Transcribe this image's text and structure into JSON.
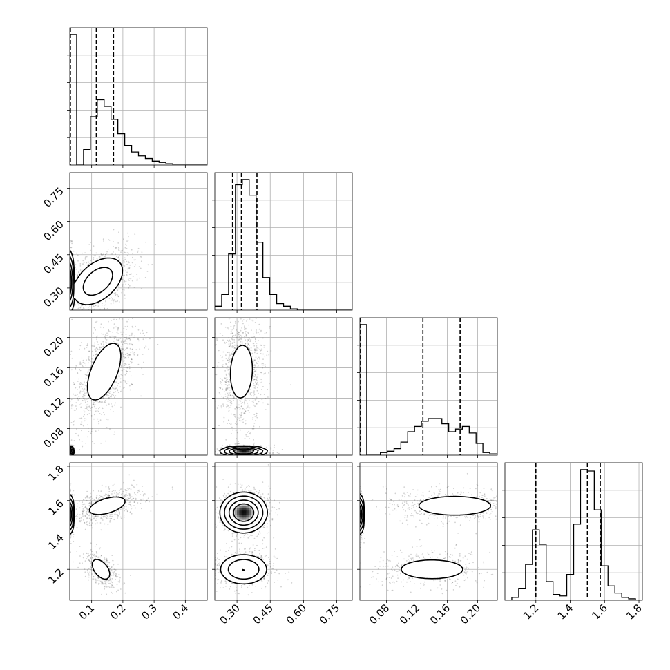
{
  "chart_data": {
    "type": "corner",
    "grid": true,
    "n_params": 4,
    "params": [
      {
        "ticks": [
          0.1,
          0.2,
          0.3,
          0.4
        ],
        "labels": [
          "0.1",
          "0.2",
          "0.3",
          "0.4"
        ],
        "range": [
          0.03,
          0.47
        ]
      },
      {
        "ticks": [
          0.3,
          0.45,
          0.6,
          0.75
        ],
        "labels": [
          "0.30",
          "0.45",
          "0.60",
          "0.75"
        ],
        "range": [
          0.2,
          0.82
        ]
      },
      {
        "ticks": [
          0.08,
          0.12,
          0.16,
          0.2
        ],
        "labels": [
          "0.08",
          "0.12",
          "0.16",
          "0.20"
        ],
        "range": [
          0.045,
          0.226
        ]
      },
      {
        "ticks": [
          1.2,
          1.4,
          1.6,
          1.8
        ],
        "labels": [
          "1.2",
          "1.4",
          "1.6",
          "1.8"
        ],
        "range": [
          1.02,
          1.82
        ]
      }
    ],
    "histograms": [
      {
        "bins": [
          0.03,
          0.052,
          0.074,
          0.096,
          0.118,
          0.14,
          0.162,
          0.184,
          0.206,
          0.228,
          0.25,
          0.272,
          0.294,
          0.316,
          0.338,
          0.36,
          0.382,
          0.404,
          0.426,
          0.448,
          0.47
        ],
        "values": [
          1.0,
          0.0,
          0.12,
          0.37,
          0.5,
          0.45,
          0.35,
          0.24,
          0.15,
          0.1,
          0.07,
          0.05,
          0.03,
          0.02,
          0.01,
          0.0,
          0.0,
          0.0,
          0.0,
          0.0
        ],
        "quantiles": [
          0.032,
          0.115,
          0.17
        ]
      },
      {
        "bins": [
          0.2,
          0.231,
          0.262,
          0.293,
          0.324,
          0.355,
          0.386,
          0.417,
          0.448,
          0.479,
          0.51,
          0.541,
          0.572,
          0.603,
          0.634,
          0.665,
          0.696,
          0.727,
          0.758,
          0.789,
          0.82
        ],
        "values": [
          0.03,
          0.12,
          0.43,
          0.96,
          1.0,
          0.88,
          0.52,
          0.25,
          0.12,
          0.05,
          0.03,
          0.01,
          0.0,
          0.0,
          0.0,
          0.0,
          0.0,
          0.0,
          0.0,
          0.0
        ],
        "quantiles": [
          0.28,
          0.32,
          0.39
        ]
      },
      {
        "bins": [
          0.045,
          0.054,
          0.063,
          0.072,
          0.081,
          0.09,
          0.099,
          0.108,
          0.117,
          0.126,
          0.135,
          0.144,
          0.153,
          0.162,
          0.171,
          0.18,
          0.189,
          0.198,
          0.207,
          0.216,
          0.226
        ],
        "values": [
          1.0,
          0.0,
          0.0,
          0.02,
          0.03,
          0.05,
          0.1,
          0.18,
          0.22,
          0.26,
          0.28,
          0.28,
          0.24,
          0.18,
          0.2,
          0.22,
          0.17,
          0.09,
          0.02,
          0.01
        ],
        "quantiles": [
          0.046,
          0.128,
          0.177
        ]
      },
      {
        "bins": [
          1.02,
          1.06,
          1.1,
          1.14,
          1.18,
          1.22,
          1.26,
          1.3,
          1.34,
          1.38,
          1.42,
          1.46,
          1.5,
          1.54,
          1.58,
          1.62,
          1.66,
          1.7,
          1.74,
          1.78,
          1.82
        ],
        "values": [
          0.0,
          0.02,
          0.08,
          0.25,
          0.49,
          0.39,
          0.13,
          0.04,
          0.03,
          0.18,
          0.53,
          0.91,
          0.9,
          0.63,
          0.24,
          0.1,
          0.05,
          0.02,
          0.01,
          0.0
        ],
        "quantiles": [
          1.2,
          1.5,
          1.575
        ]
      }
    ],
    "pairs": [
      {
        "row": 1,
        "col": 0,
        "blobs": [
          {
            "mean": [
              0.032,
              0.33
            ],
            "sd": [
              0.004,
              0.06
            ],
            "rho": 0.0,
            "peak": 1.0,
            "weight": 0.3
          },
          {
            "mean": [
              0.12,
              0.33
            ],
            "sd": [
              0.045,
              0.06
            ],
            "rho": 0.45,
            "peak": 0.25,
            "weight": 0.7
          }
        ]
      },
      {
        "row": 2,
        "col": 0,
        "blobs": [
          {
            "mean": [
              0.032,
              0.05
            ],
            "sd": [
              0.004,
              0.003
            ],
            "rho": 0.0,
            "peak": 1.0,
            "weight": 0.3
          },
          {
            "mean": [
              0.14,
              0.155
            ],
            "sd": [
              0.04,
              0.028
            ],
            "rho": 0.55,
            "peak": 0.12,
            "weight": 0.7
          }
        ]
      },
      {
        "row": 2,
        "col": 1,
        "blobs": [
          {
            "mean": [
              0.33,
              0.05
            ],
            "sd": [
              0.045,
              0.003
            ],
            "rho": 0.0,
            "peak": 1.0,
            "weight": 0.3
          },
          {
            "mean": [
              0.32,
              0.155
            ],
            "sd": [
              0.04,
              0.028
            ],
            "rho": 0.1,
            "peak": 0.12,
            "weight": 0.7
          }
        ]
      },
      {
        "row": 3,
        "col": 0,
        "blobs": [
          {
            "mean": [
              0.032,
              1.52
            ],
            "sd": [
              0.004,
              0.05
            ],
            "rho": 0.0,
            "peak": 1.0,
            "weight": 0.3
          },
          {
            "mean": [
              0.15,
              1.57
            ],
            "sd": [
              0.045,
              0.04
            ],
            "rho": 0.5,
            "peak": 0.12,
            "weight": 0.45
          },
          {
            "mean": [
              0.13,
              1.2
            ],
            "sd": [
              0.022,
              0.045
            ],
            "rho": -0.5,
            "peak": 0.12,
            "weight": 0.25
          }
        ]
      },
      {
        "row": 3,
        "col": 1,
        "blobs": [
          {
            "mean": [
              0.33,
              1.53
            ],
            "sd": [
              0.045,
              0.05
            ],
            "rho": 0.0,
            "peak": 1.0,
            "weight": 0.6
          },
          {
            "mean": [
              0.33,
              1.2
            ],
            "sd": [
              0.055,
              0.045
            ],
            "rho": 0.0,
            "peak": 0.35,
            "weight": 0.4
          }
        ]
      },
      {
        "row": 3,
        "col": 2,
        "blobs": [
          {
            "mean": [
              0.046,
              1.52
            ],
            "sd": [
              0.0015,
              0.05
            ],
            "rho": 0.0,
            "peak": 1.0,
            "weight": 0.3
          },
          {
            "mean": [
              0.17,
              1.57
            ],
            "sd": [
              0.035,
              0.04
            ],
            "rho": 0.0,
            "peak": 0.12,
            "weight": 0.4
          },
          {
            "mean": [
              0.14,
              1.2
            ],
            "sd": [
              0.03,
              0.04
            ],
            "rho": 0.0,
            "peak": 0.12,
            "weight": 0.3
          }
        ]
      }
    ]
  }
}
